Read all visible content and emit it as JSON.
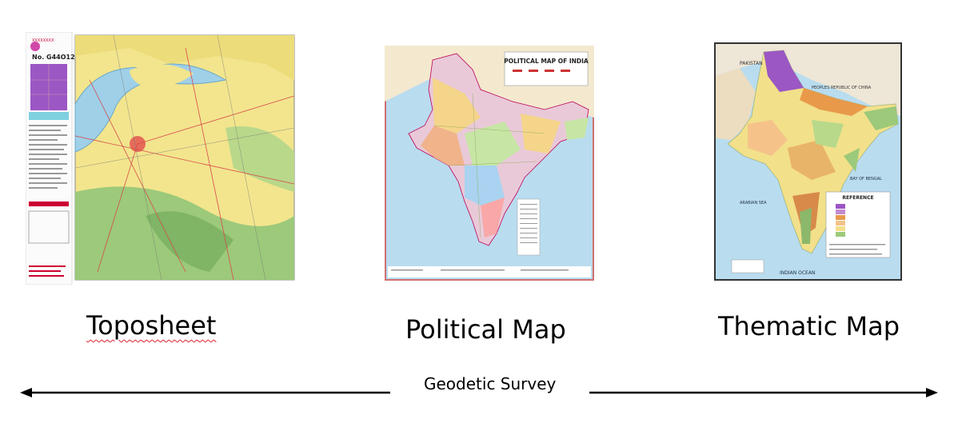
{
  "maps": {
    "toposheet": {
      "caption": "Toposheet",
      "sheet_number": "No. G44O12"
    },
    "political": {
      "caption": "Political Map",
      "title": "POLITICAL MAP OF INDIA"
    },
    "thematic": {
      "caption": "Thematic Map",
      "legend_title": "REFERENCE",
      "labels": [
        "PAKISTAN",
        "PEOPLES REPUBLIC OF CHINA",
        "BAY OF BENGAL",
        "ARABIAN SEA",
        "INDIAN OCEAN"
      ]
    }
  },
  "axis": {
    "label": "Geodetic Survey",
    "direction": "double-headed"
  },
  "colors": {
    "sea": "#b9dcef",
    "terrain_yellow": "#f0e08a",
    "terrain_green": "#9cc97a",
    "relief_orange": "#e89a4a"
  }
}
